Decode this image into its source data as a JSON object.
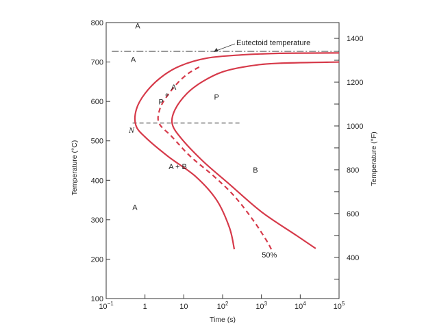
{
  "chart_data": {
    "type": "line",
    "title": "",
    "xlabel": "Time (s)",
    "ylabel": "Temperature (°C)",
    "y2label": "Temperature (°F)",
    "x_scale": "log",
    "xlim": [
      0.1,
      100000
    ],
    "ylim": [
      100,
      800
    ],
    "y2lim": [
      212,
      1472
    ],
    "grid": false,
    "x_ticks": [
      {
        "value": 0.1,
        "base": "10",
        "exp": "−1"
      },
      {
        "value": 1,
        "base": "1",
        "exp": ""
      },
      {
        "value": 10,
        "base": "10",
        "exp": ""
      },
      {
        "value": 100,
        "base": "10",
        "exp": "2"
      },
      {
        "value": 1000,
        "base": "10",
        "exp": "3"
      },
      {
        "value": 10000,
        "base": "10",
        "exp": "4"
      },
      {
        "value": 100000,
        "base": "10",
        "exp": "5"
      }
    ],
    "y_ticks": [
      {
        "value": 100,
        "label": "100"
      },
      {
        "value": 200,
        "label": "200"
      },
      {
        "value": 300,
        "label": "300"
      },
      {
        "value": 400,
        "label": "400"
      },
      {
        "value": 500,
        "label": "500"
      },
      {
        "value": 600,
        "label": "600"
      },
      {
        "value": 700,
        "label": "700"
      },
      {
        "value": 800,
        "label": "800"
      }
    ],
    "y2_ticks": [
      {
        "value": 400,
        "label": "400"
      },
      {
        "value": 600,
        "label": "600"
      },
      {
        "value": 800,
        "label": "800"
      },
      {
        "value": 1000,
        "label": "1000"
      },
      {
        "value": 1200,
        "label": "1200"
      },
      {
        "value": 1400,
        "label": "1400"
      }
    ],
    "y2_minor_ticks": [
      300,
      500,
      700,
      900,
      1100,
      1300
    ],
    "series": [
      {
        "style": "solid",
        "color": "#d63a4a",
        "points": [
          [
            200,
            225
          ],
          [
            150,
            280
          ],
          [
            70,
            350
          ],
          [
            20,
            410
          ],
          [
            4,
            460
          ],
          [
            1,
            510
          ],
          [
            0.58,
            540
          ],
          [
            0.6,
            580
          ],
          [
            1,
            620
          ],
          [
            2.5,
            660
          ],
          [
            8,
            690
          ],
          [
            40,
            710
          ],
          [
            300,
            718
          ],
          [
            3000,
            722
          ],
          [
            100000,
            723
          ]
        ]
      },
      {
        "style": "dashed",
        "color": "#d63a4a",
        "points": [
          [
            1800,
            225
          ],
          [
            1300,
            250
          ],
          [
            600,
            300
          ],
          [
            200,
            360
          ],
          [
            60,
            410
          ],
          [
            15,
            460
          ],
          [
            5,
            510
          ],
          [
            2.3,
            545
          ],
          [
            2.4,
            580
          ],
          [
            3.5,
            610
          ],
          [
            6,
            640
          ],
          [
            9.5,
            660
          ],
          [
            15,
            675
          ],
          [
            28,
            690
          ]
        ]
      },
      {
        "style": "solid",
        "color": "#d63a4a",
        "points": [
          [
            25000,
            227
          ],
          [
            8000,
            260
          ],
          [
            1000,
            320
          ],
          [
            150,
            390
          ],
          [
            30,
            450
          ],
          [
            8,
            510
          ],
          [
            5,
            545
          ],
          [
            6,
            580
          ],
          [
            12,
            620
          ],
          [
            30,
            650
          ],
          [
            100,
            675
          ],
          [
            500,
            690
          ],
          [
            3000,
            697
          ],
          [
            100000,
            700
          ]
        ]
      }
    ],
    "reference_lines": [
      {
        "label": "Eutectoid temperature",
        "y": 727,
        "style": "dashdot",
        "x_from": 0.14,
        "x_to": 100000
      },
      {
        "label": "",
        "y": 545,
        "style": "dashed",
        "x_from": 0.48,
        "x_to": 280
      }
    ],
    "annotations": [
      {
        "text": "A",
        "x": 0.65,
        "y": 785
      },
      {
        "text": "A",
        "x": 0.5,
        "y": 700
      },
      {
        "text": "A",
        "x": 0.55,
        "y": 325
      },
      {
        "text": "A",
        "x": 5.5,
        "y": 630
      },
      {
        "text": "P",
        "x": 2.6,
        "y": 592
      },
      {
        "text": "+",
        "x": 3.7,
        "y": 610
      },
      {
        "text": "P",
        "x": 70,
        "y": 605
      },
      {
        "text": "A + B",
        "x": 7,
        "y": 428
      },
      {
        "text": "B",
        "x": 700,
        "y": 420
      },
      {
        "text": "N",
        "x": 0.45,
        "y": 520
      },
      {
        "text": "50%",
        "x": 1600,
        "y": 204
      }
    ]
  }
}
